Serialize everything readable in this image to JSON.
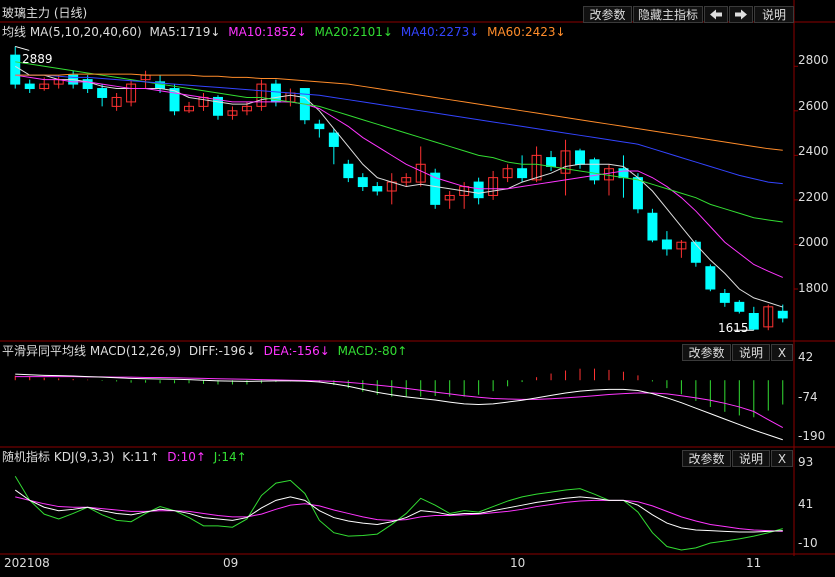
{
  "main": {
    "title": "玻璃主力 (日线)",
    "buttons": {
      "params": "改参数",
      "hide_indicator": "隐藏主指标",
      "prev_icon": "arrow-left-icon",
      "next_icon": "arrow-right-icon",
      "help": "说明"
    },
    "ma_legend": [
      {
        "label": "均线 MA(5,10,20,40,60)",
        "color": "#dddddd"
      },
      {
        "label": "MA5:1719↓",
        "color": "#dddddd"
      },
      {
        "label": "MA10:1852↓",
        "color": "#ff35ff"
      },
      {
        "label": "MA20:2101↓",
        "color": "#33dd33"
      },
      {
        "label": "MA40:2273↓",
        "color": "#3344ff"
      },
      {
        "label": "MA60:2423↓",
        "color": "#ff8c2a"
      }
    ],
    "high_label": "2889",
    "low_label": "1615",
    "y_ticks": [
      "2800",
      "2600",
      "2400",
      "2200",
      "2000",
      "1800"
    ]
  },
  "macd": {
    "title": "平滑异同平均线",
    "legend": [
      {
        "label": "MACD(12,26,9)",
        "color": "#dddddd"
      },
      {
        "label": "DIFF:-196↓",
        "color": "#dddddd"
      },
      {
        "label": "DEA:-156↓",
        "color": "#ff35ff"
      },
      {
        "label": "MACD:-80↑",
        "color": "#33dd33"
      }
    ],
    "buttons": {
      "params": "改参数",
      "help": "说明",
      "close": "X"
    },
    "y_ticks": [
      "42",
      "-74",
      "-190"
    ]
  },
  "kdj": {
    "title": "随机指标",
    "legend": [
      {
        "label": "KDJ(9,3,3)",
        "color": "#dddddd"
      },
      {
        "label": "K:11↑",
        "color": "#dddddd"
      },
      {
        "label": "D:10↑",
        "color": "#ff35ff"
      },
      {
        "label": "J:14↑",
        "color": "#33dd33"
      }
    ],
    "buttons": {
      "params": "改参数",
      "help": "说明",
      "close": "X"
    },
    "y_ticks": [
      "93",
      "41",
      "-10"
    ]
  },
  "x_labels": [
    "202108",
    "09",
    "10",
    "11"
  ],
  "colors": {
    "up": "#ff3232",
    "down": "#00ffff",
    "grid": "#8b0000",
    "bg": "#000000"
  },
  "chart_data": {
    "type": "candlestick",
    "instrument": "玻璃主力 (日线)",
    "candles": [
      [
        2850,
        2720,
        2889,
        2700
      ],
      [
        2720,
        2700,
        2740,
        2680
      ],
      [
        2700,
        2720,
        2750,
        2690
      ],
      [
        2720,
        2740,
        2760,
        2700
      ],
      [
        2760,
        2720,
        2780,
        2700
      ],
      [
        2740,
        2700,
        2760,
        2680
      ],
      [
        2700,
        2660,
        2720,
        2620
      ],
      [
        2620,
        2660,
        2680,
        2600
      ],
      [
        2640,
        2720,
        2740,
        2620
      ],
      [
        2740,
        2760,
        2780,
        2700
      ],
      [
        2730,
        2700,
        2760,
        2680
      ],
      [
        2700,
        2600,
        2720,
        2580
      ],
      [
        2600,
        2620,
        2640,
        2590
      ],
      [
        2620,
        2660,
        2680,
        2600
      ],
      [
        2660,
        2580,
        2670,
        2560
      ],
      [
        2580,
        2600,
        2620,
        2560
      ],
      [
        2600,
        2620,
        2640,
        2580
      ],
      [
        2620,
        2720,
        2740,
        2600
      ],
      [
        2720,
        2640,
        2740,
        2620
      ],
      [
        2640,
        2680,
        2700,
        2620
      ],
      [
        2700,
        2560,
        2700,
        2540
      ],
      [
        2540,
        2520,
        2560,
        2480
      ],
      [
        2500,
        2440,
        2520,
        2360
      ],
      [
        2360,
        2300,
        2380,
        2280
      ],
      [
        2300,
        2260,
        2320,
        2240
      ],
      [
        2260,
        2240,
        2280,
        2220
      ],
      [
        2240,
        2280,
        2320,
        2180
      ],
      [
        2280,
        2300,
        2320,
        2260
      ],
      [
        2280,
        2360,
        2440,
        2260
      ],
      [
        2320,
        2180,
        2340,
        2160
      ],
      [
        2200,
        2220,
        2240,
        2160
      ],
      [
        2220,
        2260,
        2280,
        2160
      ],
      [
        2280,
        2210,
        2300,
        2180
      ],
      [
        2220,
        2300,
        2330,
        2200
      ],
      [
        2300,
        2340,
        2360,
        2280
      ],
      [
        2340,
        2300,
        2400,
        2280
      ],
      [
        2290,
        2400,
        2440,
        2280
      ],
      [
        2390,
        2350,
        2420,
        2330
      ],
      [
        2320,
        2420,
        2470,
        2220
      ],
      [
        2420,
        2360,
        2430,
        2340
      ],
      [
        2380,
        2290,
        2390,
        2270
      ],
      [
        2290,
        2340,
        2360,
        2220
      ],
      [
        2340,
        2300,
        2400,
        2210
      ],
      [
        2300,
        2160,
        2320,
        2140
      ],
      [
        2140,
        2020,
        2160,
        2010
      ],
      [
        2020,
        1980,
        2060,
        1950
      ],
      [
        1980,
        2010,
        2020,
        1940
      ],
      [
        2010,
        1920,
        2020,
        1900
      ],
      [
        1900,
        1800,
        1910,
        1790
      ],
      [
        1780,
        1740,
        1800,
        1720
      ],
      [
        1740,
        1700,
        1750,
        1690
      ],
      [
        1690,
        1620,
        1720,
        1615
      ],
      [
        1630,
        1720,
        1730,
        1615
      ],
      [
        1700,
        1670,
        1730,
        1650
      ]
    ],
    "ma_lines": {
      "MA5": [
        2800,
        2760,
        2760,
        2740,
        2740,
        2730,
        2710,
        2700,
        2700,
        2700,
        2700,
        2690,
        2660,
        2650,
        2640,
        2630,
        2630,
        2650,
        2660,
        2670,
        2660,
        2600,
        2520,
        2440,
        2360,
        2300,
        2280,
        2260,
        2270,
        2260,
        2250,
        2240,
        2230,
        2240,
        2250,
        2280,
        2300,
        2320,
        2350,
        2360,
        2360,
        2360,
        2350,
        2300,
        2240,
        2160,
        2080,
        2000,
        1930,
        1870,
        1800,
        1760,
        1740,
        1719
      ],
      "MA10": [
        2760,
        2750,
        2740,
        2740,
        2730,
        2730,
        2720,
        2710,
        2700,
        2700,
        2690,
        2680,
        2670,
        2660,
        2650,
        2640,
        2640,
        2640,
        2640,
        2640,
        2630,
        2610,
        2570,
        2530,
        2480,
        2440,
        2400,
        2360,
        2330,
        2300,
        2280,
        2260,
        2250,
        2250,
        2250,
        2260,
        2270,
        2280,
        2290,
        2300,
        2310,
        2320,
        2330,
        2330,
        2300,
        2260,
        2210,
        2150,
        2080,
        2010,
        1960,
        1910,
        1880,
        1852
      ],
      "MA20": [
        2820,
        2810,
        2800,
        2790,
        2780,
        2770,
        2760,
        2750,
        2740,
        2730,
        2720,
        2710,
        2700,
        2690,
        2680,
        2670,
        2660,
        2660,
        2650,
        2640,
        2630,
        2620,
        2600,
        2580,
        2560,
        2540,
        2520,
        2500,
        2480,
        2460,
        2440,
        2420,
        2400,
        2390,
        2370,
        2360,
        2360,
        2350,
        2340,
        2330,
        2320,
        2310,
        2300,
        2290,
        2270,
        2250,
        2230,
        2210,
        2180,
        2160,
        2140,
        2120,
        2110,
        2101
      ],
      "MA40": [
        2760,
        2760,
        2760,
        2755,
        2750,
        2750,
        2745,
        2740,
        2735,
        2730,
        2725,
        2720,
        2715,
        2710,
        2705,
        2700,
        2695,
        2690,
        2685,
        2680,
        2675,
        2670,
        2660,
        2650,
        2640,
        2630,
        2620,
        2610,
        2600,
        2590,
        2580,
        2570,
        2560,
        2550,
        2540,
        2530,
        2520,
        2510,
        2500,
        2490,
        2480,
        2470,
        2460,
        2450,
        2430,
        2410,
        2390,
        2370,
        2350,
        2330,
        2310,
        2295,
        2280,
        2273
      ],
      "MA60": [
        2760,
        2760,
        2760,
        2760,
        2765,
        2765,
        2765,
        2765,
        2765,
        2760,
        2760,
        2760,
        2760,
        2755,
        2755,
        2750,
        2750,
        2745,
        2745,
        2740,
        2735,
        2730,
        2725,
        2720,
        2710,
        2700,
        2690,
        2680,
        2670,
        2660,
        2650,
        2640,
        2630,
        2620,
        2610,
        2600,
        2590,
        2580,
        2570,
        2560,
        2550,
        2540,
        2530,
        2520,
        2510,
        2500,
        2490,
        2480,
        2470,
        2460,
        2450,
        2440,
        2430,
        2423
      ]
    },
    "macd": {
      "diff": [
        20,
        18,
        16,
        15,
        14,
        12,
        10,
        8,
        6,
        5,
        4,
        3,
        2,
        0,
        -2,
        -3,
        -4,
        -3,
        -2,
        -2,
        -3,
        -6,
        -12,
        -20,
        -30,
        -40,
        -48,
        -55,
        -60,
        -65,
        -72,
        -78,
        -80,
        -78,
        -72,
        -66,
        -58,
        -50,
        -42,
        -36,
        -32,
        -30,
        -30,
        -34,
        -44,
        -58,
        -74,
        -92,
        -110,
        -128,
        -146,
        -164,
        -180,
        -196
      ],
      "dea": [
        12,
        12,
        12,
        12,
        12,
        11,
        11,
        10,
        10,
        9,
        9,
        8,
        7,
        6,
        5,
        4,
        3,
        2,
        1,
        0,
        -1,
        -2,
        -4,
        -7,
        -11,
        -16,
        -21,
        -27,
        -33,
        -39,
        -45,
        -51,
        -56,
        -60,
        -62,
        -63,
        -63,
        -61,
        -58,
        -55,
        -51,
        -47,
        -44,
        -42,
        -42,
        -45,
        -51,
        -58,
        -66,
        -76,
        -88,
        -103,
        -130,
        -156
      ],
      "hist": [
        15,
        12,
        8,
        6,
        4,
        2,
        -2,
        -4,
        -8,
        -8,
        -10,
        -10,
        -10,
        -12,
        -14,
        -14,
        -14,
        -10,
        -6,
        -4,
        -4,
        -8,
        -16,
        -26,
        -38,
        -48,
        -54,
        -56,
        -54,
        -52,
        -54,
        -54,
        -48,
        -36,
        -20,
        -6,
        10,
        22,
        32,
        38,
        38,
        34,
        28,
        16,
        -4,
        -26,
        -46,
        -68,
        -88,
        -104,
        -116,
        -122,
        -100,
        -80
      ]
    },
    "kdj": {
      "k": [
        70,
        55,
        45,
        40,
        42,
        45,
        40,
        36,
        34,
        38,
        42,
        40,
        36,
        30,
        28,
        26,
        30,
        44,
        55,
        60,
        55,
        40,
        30,
        25,
        22,
        20,
        24,
        30,
        40,
        38,
        34,
        36,
        36,
        40,
        44,
        48,
        52,
        55,
        58,
        60,
        58,
        55,
        55,
        48,
        34,
        22,
        15,
        12,
        11,
        10,
        9,
        9,
        10,
        11
      ],
      "d": [
        60,
        55,
        50,
        46,
        45,
        45,
        43,
        41,
        39,
        39,
        40,
        40,
        39,
        36,
        33,
        31,
        31,
        35,
        42,
        48,
        50,
        47,
        41,
        36,
        31,
        27,
        26,
        27,
        31,
        33,
        33,
        34,
        35,
        37,
        39,
        42,
        46,
        49,
        52,
        54,
        55,
        55,
        55,
        53,
        47,
        39,
        31,
        25,
        20,
        17,
        14,
        12,
        11,
        10
      ],
      "j": [
        90,
        55,
        35,
        28,
        36,
        45,
        34,
        26,
        24,
        36,
        46,
        40,
        30,
        18,
        18,
        16,
        28,
        62,
        80,
        84,
        65,
        26,
        8,
        3,
        4,
        6,
        20,
        36,
        58,
        48,
        36,
        40,
        38,
        46,
        54,
        60,
        64,
        67,
        70,
        72,
        64,
        55,
        55,
        38,
        8,
        -12,
        -17,
        -14,
        -7,
        -4,
        -1,
        3,
        8,
        14
      ]
    },
    "y_range_main": [
      1580,
      2900
    ],
    "y_range_macd": [
      -210,
      60
    ],
    "y_range_kdj": [
      -20,
      102
    ],
    "x_axis": "trading days, Aug–Nov 2021"
  }
}
